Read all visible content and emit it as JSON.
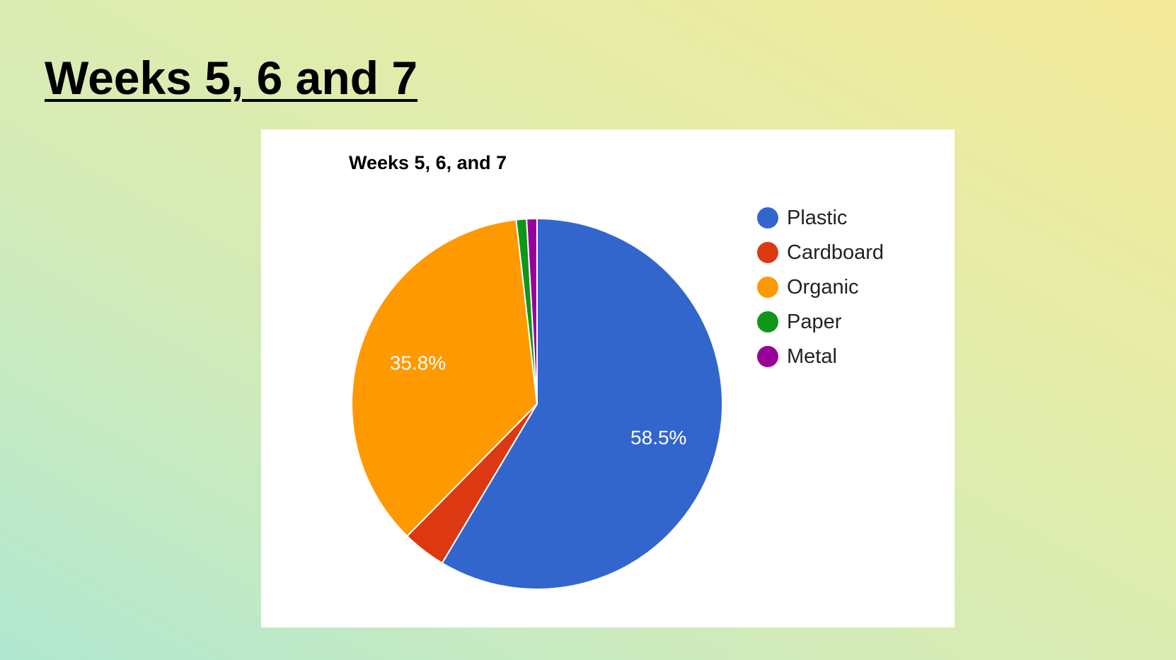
{
  "slide": {
    "title": "Weeks 5, 6 and 7"
  },
  "chart_data": {
    "type": "pie",
    "title": "Weeks 5, 6, and 7",
    "legend_position": "right",
    "start_angle_deg": 0,
    "direction": "clockwise",
    "slices": [
      {
        "label": "Plastic",
        "value": 58.5,
        "color": "#3366cc",
        "data_label": "58.5%"
      },
      {
        "label": "Cardboard",
        "value": 3.8,
        "color": "#dc3912",
        "data_label": ""
      },
      {
        "label": "Organic",
        "value": 35.8,
        "color": "#ff9900",
        "data_label": "35.8%"
      },
      {
        "label": "Paper",
        "value": 0.9,
        "color": "#109618",
        "data_label": ""
      },
      {
        "label": "Metal",
        "value": 0.9,
        "color": "#990099",
        "data_label": ""
      }
    ]
  }
}
